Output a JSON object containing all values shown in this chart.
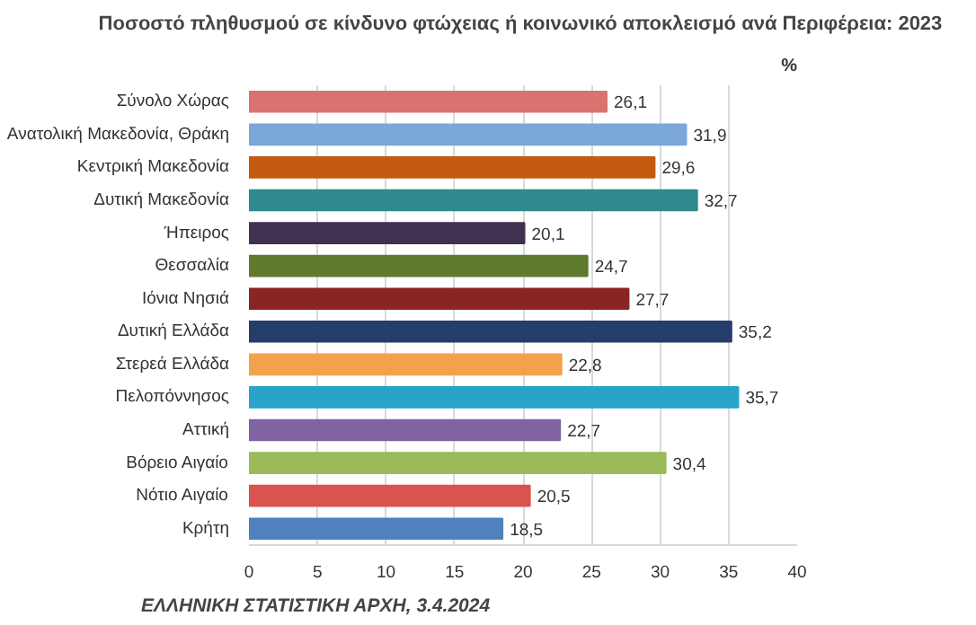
{
  "chart_data": {
    "type": "bar",
    "orientation": "horizontal",
    "title": "Ποσοστό πληθυσμού σε κίνδυνο φτώχειας ή κοινωνικό αποκλεισμό  ανά Περιφέρεια: 2023",
    "xlabel": "%",
    "categories": [
      "Σύνολο Χώρας",
      "Ανατολική Μακεδονία, Θράκη",
      "Κεντρική Μακεδονία",
      "Δυτική Μακεδονία",
      "Ήπειρος",
      "Θεσσαλία",
      "Ιόνια Νησιά",
      "Δυτική Ελλάδα",
      "Στερεά Ελλάδα",
      "Πελοπόννησος",
      "Αττική",
      "Βόρειο Αιγαίο",
      "Νότιο Αιγαίο",
      "Κρήτη"
    ],
    "values": [
      26.1,
      31.9,
      29.6,
      32.7,
      20.1,
      24.7,
      27.7,
      35.2,
      22.8,
      35.7,
      22.7,
      30.4,
      20.5,
      18.5
    ],
    "colors": [
      "#d9736f",
      "#7ba7d9",
      "#c55a11",
      "#2e8a8c",
      "#403152",
      "#5f7a2e",
      "#8b2525",
      "#243d6b",
      "#f4a14b",
      "#2aa3c8",
      "#8064a2",
      "#9bbb59",
      "#d9534f",
      "#4f81bd"
    ],
    "value_labels": [
      "26,1",
      "31,9",
      "29,6",
      "32,7",
      "20,1",
      "24,7",
      "27,7",
      "35,2",
      "22,8",
      "35,7",
      "22,7",
      "30,4",
      "20,5",
      "18,5"
    ],
    "xlim": [
      0,
      40
    ],
    "xticks": [
      0,
      5,
      10,
      15,
      20,
      25,
      30,
      35,
      40
    ],
    "grid": "x",
    "annotations": [
      "ΕΛΛΗΝΙΚΗ ΣΤΑΤΙΣΤΙΚΗ ΑΡΧΗ, 3.4.2024"
    ]
  }
}
